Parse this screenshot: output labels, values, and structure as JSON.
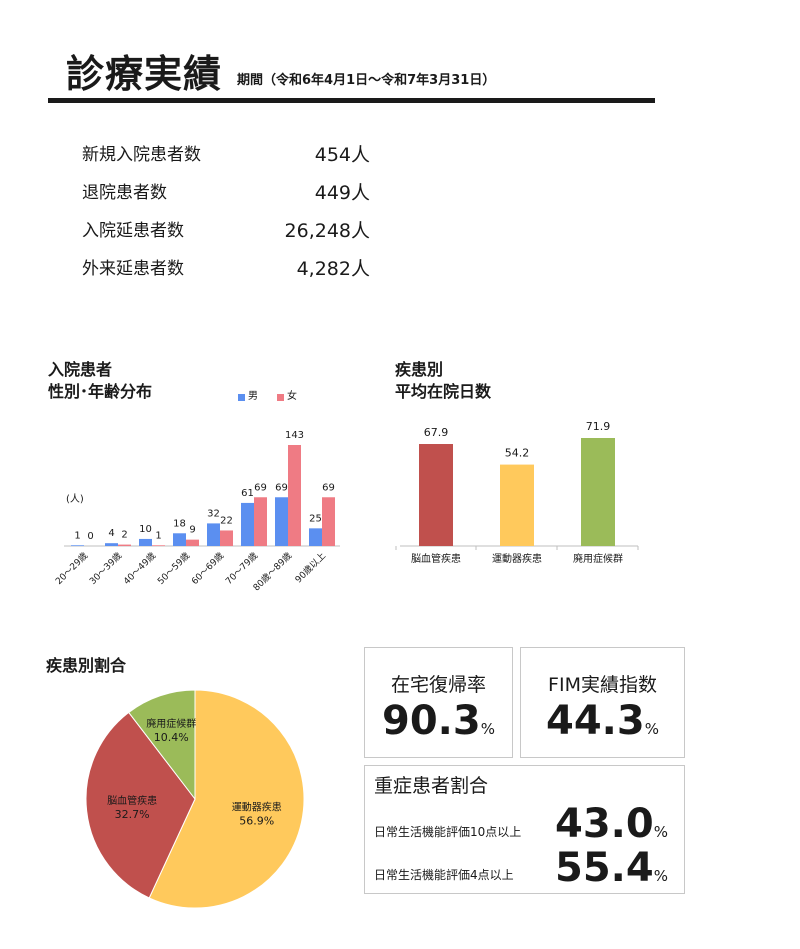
{
  "header": {
    "title": "診療実績",
    "period": "期間（令和6年4月1日～令和7年3月31日）"
  },
  "stats": [
    {
      "label": "新規入院患者数",
      "value": "454人"
    },
    {
      "label": "退院患者数",
      "value": "449人"
    },
    {
      "label": "入院延患者数",
      "value": "26,248人"
    },
    {
      "label": "外来延患者数",
      "value": "4,282人"
    }
  ],
  "colors": {
    "male": "#5b8ff0",
    "female": "#ef7b84",
    "cerebro": "#c0504d",
    "motor": "#ffc95c",
    "disuse": "#9bbb59"
  },
  "chart_data": [
    {
      "type": "bar",
      "title": "入院患者\n性別･年齢分布",
      "title_lines": [
        "入院患者",
        "性別･年齢分布"
      ],
      "ylabel": "(人)",
      "categories": [
        "20～29歳",
        "30～39歳",
        "40～49歳",
        "50～59歳",
        "60～69歳",
        "70～79歳",
        "80歳～89歳",
        "90歳以上"
      ],
      "series": [
        {
          "name": "男",
          "values": [
            1,
            4,
            10,
            18,
            32,
            61,
            69,
            25
          ]
        },
        {
          "name": "女",
          "values": [
            0,
            2,
            1,
            9,
            22,
            69,
            143,
            69
          ]
        }
      ],
      "ylim": [
        0,
        150
      ],
      "legend": "top-right",
      "grid": false
    },
    {
      "type": "bar",
      "title": "疾患別\n平均在院日数",
      "title_lines": [
        "疾患別",
        "平均在院日数"
      ],
      "categories": [
        "脳血管疾患",
        "運動器疾患",
        "廃用症候群"
      ],
      "values": [
        67.9,
        54.2,
        71.9
      ],
      "ylim": [
        0,
        80
      ],
      "grid": false
    },
    {
      "type": "pie",
      "title": "疾患別割合",
      "slices": [
        {
          "label": "運動器疾患",
          "value": 56.9,
          "display": "56.9%"
        },
        {
          "label": "脳血管疾患",
          "value": 32.7,
          "display": "32.7%"
        },
        {
          "label": "廃用症候群",
          "value": 10.4,
          "display": "10.4%"
        }
      ]
    }
  ],
  "indicators": {
    "home_return": {
      "label": "在宅復帰率",
      "value": "90.3",
      "unit": "%"
    },
    "fim": {
      "label": "FIM実績指数",
      "value": "44.3",
      "unit": "%"
    },
    "severe": {
      "label": "重症患者割合",
      "rows": [
        {
          "label": "日常生活機能評価10点以上",
          "value": "43.0",
          "unit": "%"
        },
        {
          "label": "日常生活機能評価4点以上",
          "value": "55.4",
          "unit": "%"
        }
      ]
    }
  }
}
